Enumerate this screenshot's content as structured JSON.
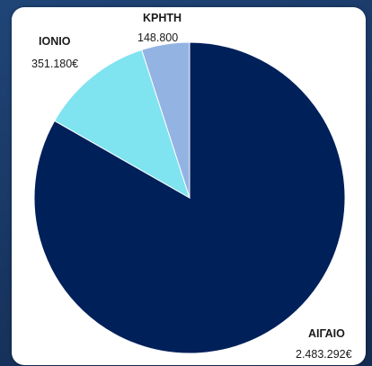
{
  "chart_data": {
    "type": "pie",
    "slices": [
      {
        "label": "ΑΙΓΑΙΟ",
        "value_label": "2.483.292€",
        "value": 2483292,
        "color": "#00205a"
      },
      {
        "label": "ΙΟΝΙΟ",
        "value_label": "351.180€",
        "value": 351180,
        "color": "#7fe3f0"
      },
      {
        "label": "ΚΡΗΤΗ",
        "value_label": "148.800",
        "value": 148800,
        "color": "#93b3e3"
      }
    ],
    "start_angle_deg": 0,
    "direction": "clockwise",
    "legend": "none"
  }
}
